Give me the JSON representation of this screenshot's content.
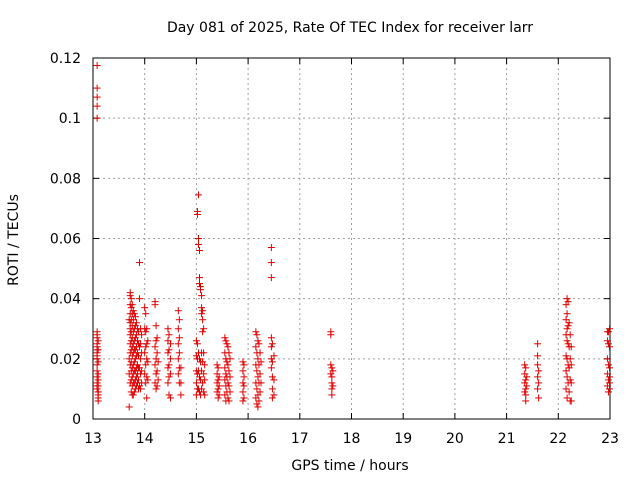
{
  "chart_data": {
    "type": "scatter",
    "title": "Day 081 of 2025, Rate Of TEC Index for receiver larr",
    "xlabel": "GPS time / hours",
    "ylabel": "ROTI / TECUs",
    "xlim": [
      13,
      23
    ],
    "ylim": [
      0,
      0.12
    ],
    "xticks": [
      13,
      14,
      15,
      16,
      17,
      18,
      19,
      20,
      21,
      22,
      23
    ],
    "yticks": [
      0,
      0.02,
      0.04,
      0.06,
      0.08,
      0.1,
      0.12
    ],
    "ytick_labels": [
      "0",
      "0.02",
      "0.04",
      "0.06",
      "0.08",
      "0.1",
      "0.12"
    ],
    "grid": true,
    "marker": "+",
    "color": "#e00000",
    "series": [
      {
        "x": [
          13.08,
          13.08,
          13.08,
          13.08,
          13.08,
          13.08,
          13.08,
          13.08,
          13.08,
          13.08,
          13.08,
          13.08,
          13.08,
          13.08,
          13.08,
          13.08,
          13.08,
          13.08,
          13.08,
          13.08,
          13.1,
          13.1,
          13.1,
          13.1,
          13.1,
          13.1,
          13.1,
          13.1,
          13.1,
          13.1,
          13.1,
          13.7,
          13.7,
          13.7,
          13.7,
          13.72,
          13.72,
          13.72,
          13.72,
          13.72,
          13.72,
          13.72,
          13.72,
          13.72,
          13.72,
          13.72,
          13.74,
          13.74,
          13.74,
          13.74,
          13.74,
          13.74,
          13.74,
          13.74,
          13.74,
          13.74,
          13.76,
          13.76,
          13.76,
          13.76,
          13.76,
          13.76,
          13.76,
          13.76,
          13.76,
          13.76,
          13.78,
          13.78,
          13.78,
          13.78,
          13.78,
          13.78,
          13.78,
          13.78,
          13.78,
          13.8,
          13.8,
          13.8,
          13.8,
          13.8,
          13.8,
          13.8,
          13.8,
          13.82,
          13.82,
          13.82,
          13.82,
          13.82,
          13.82,
          13.82,
          13.82,
          13.84,
          13.84,
          13.84,
          13.84,
          13.84,
          13.84,
          13.84,
          13.86,
          13.86,
          13.86,
          13.86,
          13.86,
          13.86,
          13.88,
          13.88,
          13.88,
          13.88,
          13.88,
          13.88,
          13.9,
          13.9,
          13.9,
          13.9,
          13.9,
          13.92,
          13.92,
          13.92,
          13.92,
          13.92,
          13.94,
          13.94,
          13.94,
          13.94,
          14.0,
          14.0,
          14.0,
          14.0,
          14.02,
          14.02,
          14.02,
          14.02,
          14.02,
          14.04,
          14.04,
          14.04,
          14.04,
          14.04,
          14.06,
          14.06,
          14.06,
          14.2,
          14.2,
          14.2,
          14.2,
          14.2,
          14.22,
          14.22,
          14.22,
          14.22,
          14.22,
          14.24,
          14.24,
          14.24,
          14.24,
          14.26,
          14.26,
          14.45,
          14.45,
          14.45,
          14.45,
          14.45,
          14.47,
          14.47,
          14.47,
          14.47,
          14.47,
          14.5,
          14.5,
          14.5,
          14.5,
          14.65,
          14.65,
          14.65,
          14.65,
          14.65,
          14.67,
          14.67,
          14.67,
          14.67,
          14.67,
          14.7,
          14.7,
          14.7,
          15.0,
          15.0,
          15.0,
          15.0,
          15.0,
          15.02,
          15.02,
          15.02,
          15.02,
          15.02,
          15.02,
          15.04,
          15.04,
          15.04,
          15.04,
          15.04,
          15.04,
          15.06,
          15.06,
          15.06,
          15.06,
          15.06,
          15.06,
          15.08,
          15.08,
          15.08,
          15.08,
          15.08,
          15.1,
          15.1,
          15.1,
          15.1,
          15.1,
          15.1,
          15.12,
          15.12,
          15.12,
          15.12,
          15.12,
          15.14,
          15.14,
          15.14,
          15.14,
          15.16,
          15.16,
          15.16,
          15.4,
          15.4,
          15.4,
          15.4,
          15.42,
          15.42,
          15.42,
          15.42,
          15.44,
          15.44,
          15.44,
          15.55,
          15.55,
          15.55,
          15.55,
          15.55,
          15.57,
          15.57,
          15.57,
          15.57,
          15.57,
          15.59,
          15.59,
          15.59,
          15.59,
          15.61,
          15.61,
          15.61,
          15.61,
          15.63,
          15.63,
          15.63,
          15.63,
          15.65,
          15.65,
          15.65,
          15.9,
          15.9,
          15.9,
          15.9,
          15.9,
          15.92,
          15.92,
          15.92,
          15.92,
          16.15,
          16.15,
          16.15,
          16.15,
          16.15,
          16.17,
          16.17,
          16.17,
          16.17,
          16.17,
          16.19,
          16.19,
          16.19,
          16.19,
          16.19,
          16.21,
          16.21,
          16.21,
          16.21,
          16.23,
          16.23,
          16.23,
          16.25,
          16.25,
          16.45,
          16.45,
          16.45,
          16.45,
          16.45,
          16.45,
          16.45,
          16.47,
          16.47,
          16.47,
          16.47,
          16.47,
          16.5,
          16.5,
          16.5,
          17.6,
          17.6,
          17.6,
          17.6,
          17.62,
          17.62,
          17.62,
          17.62,
          17.62,
          17.64,
          17.64,
          21.35,
          21.35,
          21.35,
          21.35,
          21.37,
          21.37,
          21.37,
          21.37,
          21.37,
          21.39,
          21.39,
          21.6,
          21.6,
          21.6,
          21.6,
          21.6,
          21.62,
          21.62,
          21.62,
          22.15,
          22.15,
          22.15,
          22.15,
          22.15,
          22.15,
          22.17,
          22.17,
          22.17,
          22.17,
          22.17,
          22.17,
          22.17,
          22.19,
          22.19,
          22.19,
          22.19,
          22.19,
          22.21,
          22.21,
          22.21,
          22.21,
          22.23,
          22.23,
          22.23,
          22.23,
          22.25,
          22.25,
          22.25,
          22.25,
          22.95,
          22.95,
          22.95,
          22.95,
          22.95,
          22.97,
          22.97,
          22.97,
          22.97,
          22.97,
          22.99,
          22.99,
          22.99,
          22.99,
          22.99,
          22.99
        ],
        "y": [
          0.1175,
          0.11,
          0.107,
          0.104,
          0.1,
          0.029,
          0.028,
          0.027,
          0.025,
          0.024,
          0.023,
          0.022,
          0.021,
          0.02,
          0.018,
          0.016,
          0.014,
          0.012,
          0.011,
          0.01,
          0.009,
          0.008,
          0.007,
          0.006,
          0.026,
          0.023,
          0.019,
          0.015,
          0.013,
          0.011,
          0.009,
          0.033,
          0.02,
          0.015,
          0.004,
          0.042,
          0.041,
          0.038,
          0.035,
          0.032,
          0.03,
          0.028,
          0.025,
          0.022,
          0.018,
          0.012,
          0.04,
          0.037,
          0.033,
          0.029,
          0.026,
          0.023,
          0.019,
          0.016,
          0.013,
          0.009,
          0.038,
          0.035,
          0.031,
          0.027,
          0.024,
          0.021,
          0.017,
          0.014,
          0.011,
          0.008,
          0.036,
          0.033,
          0.029,
          0.025,
          0.022,
          0.018,
          0.015,
          0.012,
          0.008,
          0.035,
          0.03,
          0.026,
          0.023,
          0.019,
          0.016,
          0.012,
          0.009,
          0.034,
          0.031,
          0.027,
          0.023,
          0.02,
          0.016,
          0.013,
          0.01,
          0.032,
          0.028,
          0.024,
          0.021,
          0.017,
          0.014,
          0.011,
          0.03,
          0.026,
          0.022,
          0.018,
          0.015,
          0.012,
          0.029,
          0.025,
          0.021,
          0.017,
          0.013,
          0.01,
          0.052,
          0.04,
          0.024,
          0.017,
          0.011,
          0.03,
          0.025,
          0.02,
          0.015,
          0.01,
          0.028,
          0.022,
          0.016,
          0.012,
          0.037,
          0.03,
          0.022,
          0.015,
          0.035,
          0.029,
          0.024,
          0.018,
          0.012,
          0.03,
          0.025,
          0.02,
          0.014,
          0.007,
          0.026,
          0.019,
          0.013,
          0.039,
          0.038,
          0.024,
          0.018,
          0.012,
          0.031,
          0.026,
          0.02,
          0.015,
          0.01,
          0.027,
          0.022,
          0.016,
          0.011,
          0.019,
          0.013,
          0.03,
          0.026,
          0.022,
          0.017,
          0.012,
          0.028,
          0.023,
          0.018,
          0.014,
          0.008,
          0.025,
          0.02,
          0.015,
          0.007,
          0.036,
          0.03,
          0.025,
          0.02,
          0.015,
          0.033,
          0.027,
          0.022,
          0.017,
          0.012,
          0.017,
          0.012,
          0.008,
          0.026,
          0.021,
          0.016,
          0.012,
          0.008,
          0.069,
          0.068,
          0.025,
          0.02,
          0.015,
          0.01,
          0.0745,
          0.06,
          0.058,
          0.022,
          0.016,
          0.01,
          0.056,
          0.047,
          0.045,
          0.02,
          0.014,
          0.009,
          0.044,
          0.043,
          0.019,
          0.013,
          0.008,
          0.041,
          0.037,
          0.035,
          0.022,
          0.016,
          0.01,
          0.036,
          0.033,
          0.029,
          0.019,
          0.012,
          0.03,
          0.022,
          0.015,
          0.009,
          0.018,
          0.013,
          0.008,
          0.018,
          0.015,
          0.012,
          0.009,
          0.017,
          0.013,
          0.01,
          0.007,
          0.014,
          0.011,
          0.008,
          0.027,
          0.022,
          0.017,
          0.013,
          0.008,
          0.026,
          0.02,
          0.015,
          0.011,
          0.006,
          0.025,
          0.019,
          0.014,
          0.009,
          0.024,
          0.018,
          0.012,
          0.007,
          0.022,
          0.016,
          0.011,
          0.006,
          0.02,
          0.014,
          0.009,
          0.019,
          0.016,
          0.012,
          0.009,
          0.006,
          0.018,
          0.014,
          0.011,
          0.007,
          0.029,
          0.024,
          0.018,
          0.012,
          0.007,
          0.028,
          0.022,
          0.016,
          0.01,
          0.005,
          0.026,
          0.02,
          0.014,
          0.008,
          0.004,
          0.025,
          0.018,
          0.012,
          0.006,
          0.022,
          0.015,
          0.009,
          0.019,
          0.012,
          0.057,
          0.052,
          0.047,
          0.027,
          0.024,
          0.02,
          0.017,
          0.025,
          0.019,
          0.014,
          0.01,
          0.007,
          0.021,
          0.013,
          0.008,
          0.029,
          0.028,
          0.018,
          0.015,
          0.017,
          0.014,
          0.012,
          0.01,
          0.008,
          0.016,
          0.011,
          0.018,
          0.015,
          0.012,
          0.009,
          0.017,
          0.013,
          0.01,
          0.008,
          0.006,
          0.014,
          0.011,
          0.025,
          0.021,
          0.018,
          0.014,
          0.01,
          0.016,
          0.012,
          0.007,
          0.038,
          0.033,
          0.028,
          0.021,
          0.016,
          0.01,
          0.04,
          0.035,
          0.03,
          0.026,
          0.02,
          0.014,
          0.007,
          0.039,
          0.031,
          0.025,
          0.018,
          0.012,
          0.032,
          0.024,
          0.017,
          0.009,
          0.028,
          0.02,
          0.013,
          0.006,
          0.024,
          0.018,
          0.012,
          0.006,
          0.029,
          0.026,
          0.02,
          0.015,
          0.011,
          0.029,
          0.025,
          0.018,
          0.013,
          0.009,
          0.03,
          0.024,
          0.017,
          0.014,
          0.012,
          0.01
        ]
      }
    ]
  }
}
